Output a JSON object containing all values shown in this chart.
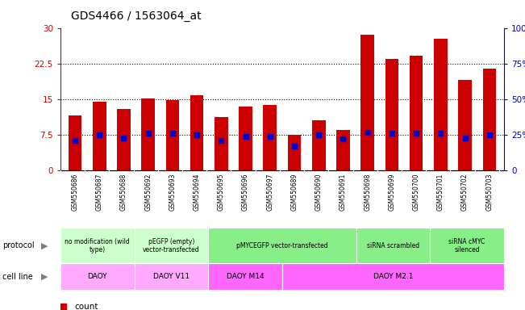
{
  "title": "GDS4466 / 1563064_at",
  "samples": [
    "GSM550686",
    "GSM550687",
    "GSM550688",
    "GSM550692",
    "GSM550693",
    "GSM550694",
    "GSM550695",
    "GSM550696",
    "GSM550697",
    "GSM550689",
    "GSM550690",
    "GSM550691",
    "GSM550698",
    "GSM550699",
    "GSM550700",
    "GSM550701",
    "GSM550702",
    "GSM550703"
  ],
  "counts": [
    11.5,
    14.5,
    13.0,
    15.2,
    14.8,
    15.8,
    11.2,
    13.5,
    13.8,
    7.5,
    10.5,
    8.5,
    28.5,
    23.5,
    24.2,
    27.8,
    19.0,
    21.5
  ],
  "percentiles": [
    21,
    25,
    23,
    26,
    26,
    25,
    21,
    24,
    24,
    17,
    25,
    22,
    27,
    26,
    26,
    26,
    23,
    25
  ],
  "bar_color": "#cc0000",
  "dot_color": "#0000cc",
  "ylim_left": [
    0,
    30
  ],
  "ylim_right": [
    0,
    100
  ],
  "yticks_left": [
    0,
    7.5,
    15,
    22.5,
    30
  ],
  "yticks_right": [
    0,
    25,
    50,
    75,
    100
  ],
  "ytick_labels_left": [
    "0",
    "7.5",
    "15",
    "22.5",
    "30"
  ],
  "ytick_labels_right": [
    "0",
    "25%",
    "50%",
    "75%",
    "100%"
  ],
  "left_axis_color": "#cc0000",
  "right_axis_color": "#0000cc",
  "bg_color": "#ffffff",
  "plot_bg": "#ffffff",
  "tick_area_bg": "#dddddd",
  "proto_bounds": [
    {
      "s": 0,
      "e": 3,
      "label": "no modification (wild\ntype)",
      "color": "#ccffcc"
    },
    {
      "s": 3,
      "e": 6,
      "label": "pEGFP (empty)\nvector-transfected",
      "color": "#ccffcc"
    },
    {
      "s": 6,
      "e": 12,
      "label": "pMYCEGFP vector-transfected",
      "color": "#88ee88"
    },
    {
      "s": 12,
      "e": 15,
      "label": "siRNA scrambled",
      "color": "#88ee88"
    },
    {
      "s": 15,
      "e": 18,
      "label": "siRNA cMYC\nsilenced",
      "color": "#88ee88"
    }
  ],
  "cell_bounds": [
    {
      "s": 0,
      "e": 3,
      "label": "DAOY",
      "color": "#ffaaff"
    },
    {
      "s": 3,
      "e": 6,
      "label": "DAOY V11",
      "color": "#ffaaff"
    },
    {
      "s": 6,
      "e": 9,
      "label": "DAOY M14",
      "color": "#ff66ff"
    },
    {
      "s": 9,
      "e": 18,
      "label": "DAOY M2.1",
      "color": "#ff66ff"
    }
  ]
}
